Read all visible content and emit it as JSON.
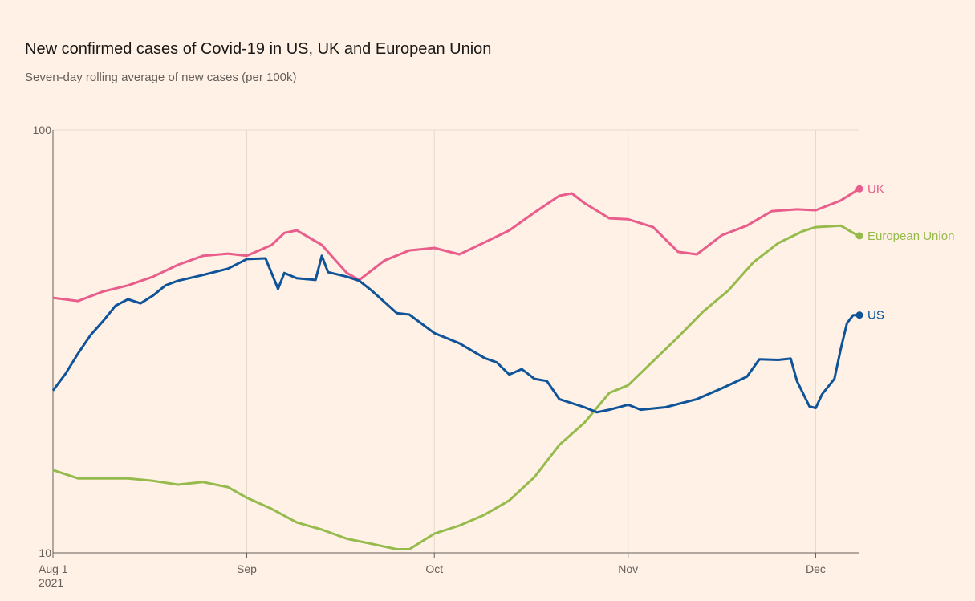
{
  "chart_data": {
    "type": "line",
    "title": "New confirmed cases of Covid-19 in US, UK and European Union",
    "subtitle": "Seven-day rolling average of new cases (per 100k)",
    "y_scale": "log",
    "ylim": [
      10,
      100
    ],
    "y_ticks": [
      "100",
      "10"
    ],
    "y_tick_values": [
      100,
      10
    ],
    "x_ticks": [
      {
        "date": "2021-08-01",
        "label": "Aug 1",
        "sublabel": "2021"
      },
      {
        "date": "2021-09-01",
        "label": "Sep"
      },
      {
        "date": "2021-10-01",
        "label": "Oct"
      },
      {
        "date": "2021-11-01",
        "label": "Nov"
      },
      {
        "date": "2021-12-01",
        "label": "Dec"
      }
    ],
    "xlim": [
      "2021-08-01",
      "2021-12-08"
    ],
    "grid": "vertical",
    "series": [
      {
        "name": "UK",
        "color": "#e95d8c",
        "points": [
          [
            "2021-08-01",
            40.1
          ],
          [
            "2021-08-05",
            39.4
          ],
          [
            "2021-08-09",
            41.5
          ],
          [
            "2021-08-13",
            42.9
          ],
          [
            "2021-08-17",
            45.0
          ],
          [
            "2021-08-21",
            48.0
          ],
          [
            "2021-08-25",
            50.4
          ],
          [
            "2021-08-29",
            51.0
          ],
          [
            "2021-09-01",
            50.4
          ],
          [
            "2021-09-05",
            53.5
          ],
          [
            "2021-09-07",
            57.1
          ],
          [
            "2021-09-09",
            57.9
          ],
          [
            "2021-09-13",
            53.5
          ],
          [
            "2021-09-17",
            45.9
          ],
          [
            "2021-09-19",
            44.2
          ],
          [
            "2021-09-23",
            49.1
          ],
          [
            "2021-09-27",
            51.9
          ],
          [
            "2021-10-01",
            52.6
          ],
          [
            "2021-10-05",
            50.8
          ],
          [
            "2021-10-09",
            54.2
          ],
          [
            "2021-10-13",
            57.9
          ],
          [
            "2021-10-17",
            63.8
          ],
          [
            "2021-10-21",
            69.9
          ],
          [
            "2021-10-23",
            70.8
          ],
          [
            "2021-10-25",
            67.2
          ],
          [
            "2021-10-29",
            61.8
          ],
          [
            "2021-11-01",
            61.5
          ],
          [
            "2021-11-05",
            58.9
          ],
          [
            "2021-11-09",
            51.5
          ],
          [
            "2021-11-12",
            50.8
          ],
          [
            "2021-11-16",
            56.4
          ],
          [
            "2021-11-20",
            59.4
          ],
          [
            "2021-11-24",
            64.3
          ],
          [
            "2021-11-28",
            64.9
          ],
          [
            "2021-12-01",
            64.6
          ],
          [
            "2021-12-05",
            68.1
          ],
          [
            "2021-12-08",
            72.6
          ]
        ]
      },
      {
        "name": "European Union",
        "color": "#96bb4d",
        "points": [
          [
            "2021-08-01",
            15.7
          ],
          [
            "2021-08-05",
            15.0
          ],
          [
            "2021-08-09",
            15.0
          ],
          [
            "2021-08-13",
            15.0
          ],
          [
            "2021-08-17",
            14.8
          ],
          [
            "2021-08-21",
            14.5
          ],
          [
            "2021-08-25",
            14.7
          ],
          [
            "2021-08-29",
            14.3
          ],
          [
            "2021-09-01",
            13.5
          ],
          [
            "2021-09-05",
            12.7
          ],
          [
            "2021-09-09",
            11.8
          ],
          [
            "2021-09-13",
            11.35
          ],
          [
            "2021-09-17",
            10.8
          ],
          [
            "2021-09-21",
            10.5
          ],
          [
            "2021-09-25",
            10.2
          ],
          [
            "2021-09-27",
            10.2
          ],
          [
            "2021-10-01",
            11.1
          ],
          [
            "2021-10-05",
            11.6
          ],
          [
            "2021-10-09",
            12.3
          ],
          [
            "2021-10-13",
            13.3
          ],
          [
            "2021-10-17",
            15.1
          ],
          [
            "2021-10-21",
            18.0
          ],
          [
            "2021-10-25",
            20.3
          ],
          [
            "2021-10-29",
            23.9
          ],
          [
            "2021-11-01",
            24.9
          ],
          [
            "2021-11-05",
            28.4
          ],
          [
            "2021-11-09",
            32.4
          ],
          [
            "2021-11-13",
            37.2
          ],
          [
            "2021-11-17",
            41.7
          ],
          [
            "2021-11-21",
            48.6
          ],
          [
            "2021-11-25",
            54.0
          ],
          [
            "2021-11-29",
            57.7
          ],
          [
            "2021-12-01",
            58.9
          ],
          [
            "2021-12-05",
            59.4
          ],
          [
            "2021-12-07",
            57.1
          ],
          [
            "2021-12-08",
            56.2
          ]
        ]
      },
      {
        "name": "US",
        "color": "#0f5499",
        "points": [
          [
            "2021-08-01",
            24.2
          ],
          [
            "2021-08-03",
            26.5
          ],
          [
            "2021-08-05",
            29.6
          ],
          [
            "2021-08-07",
            32.7
          ],
          [
            "2021-08-09",
            35.3
          ],
          [
            "2021-08-11",
            38.4
          ],
          [
            "2021-08-13",
            39.8
          ],
          [
            "2021-08-15",
            38.9
          ],
          [
            "2021-08-17",
            40.6
          ],
          [
            "2021-08-19",
            42.9
          ],
          [
            "2021-08-21",
            44.0
          ],
          [
            "2021-08-25",
            45.4
          ],
          [
            "2021-08-29",
            47.0
          ],
          [
            "2021-09-01",
            49.5
          ],
          [
            "2021-09-04",
            49.7
          ],
          [
            "2021-09-06",
            42.1
          ],
          [
            "2021-09-07",
            45.9
          ],
          [
            "2021-09-09",
            44.6
          ],
          [
            "2021-09-12",
            44.2
          ],
          [
            "2021-09-13",
            50.4
          ],
          [
            "2021-09-14",
            46.1
          ],
          [
            "2021-09-17",
            45.0
          ],
          [
            "2021-09-19",
            44.0
          ],
          [
            "2021-09-21",
            41.7
          ],
          [
            "2021-09-25",
            36.9
          ],
          [
            "2021-09-27",
            36.6
          ],
          [
            "2021-10-01",
            33.1
          ],
          [
            "2021-10-05",
            31.3
          ],
          [
            "2021-10-09",
            28.9
          ],
          [
            "2021-10-11",
            28.2
          ],
          [
            "2021-10-13",
            26.4
          ],
          [
            "2021-10-15",
            27.2
          ],
          [
            "2021-10-17",
            25.8
          ],
          [
            "2021-10-19",
            25.5
          ],
          [
            "2021-10-21",
            23.1
          ],
          [
            "2021-10-25",
            22.1
          ],
          [
            "2021-10-27",
            21.5
          ],
          [
            "2021-10-29",
            21.8
          ],
          [
            "2021-11-01",
            22.4
          ],
          [
            "2021-11-03",
            21.8
          ],
          [
            "2021-11-07",
            22.1
          ],
          [
            "2021-11-12",
            23.1
          ],
          [
            "2021-11-16",
            24.5
          ],
          [
            "2021-11-20",
            26.1
          ],
          [
            "2021-11-22",
            28.7
          ],
          [
            "2021-11-25",
            28.6
          ],
          [
            "2021-11-27",
            28.8
          ],
          [
            "2021-11-28",
            25.5
          ],
          [
            "2021-11-30",
            22.2
          ],
          [
            "2021-12-01",
            22.0
          ],
          [
            "2021-12-02",
            23.7
          ],
          [
            "2021-12-04",
            25.8
          ],
          [
            "2021-12-05",
            30.3
          ],
          [
            "2021-12-06",
            34.9
          ],
          [
            "2021-12-07",
            36.5
          ],
          [
            "2021-12-08",
            36.5
          ]
        ]
      }
    ]
  }
}
